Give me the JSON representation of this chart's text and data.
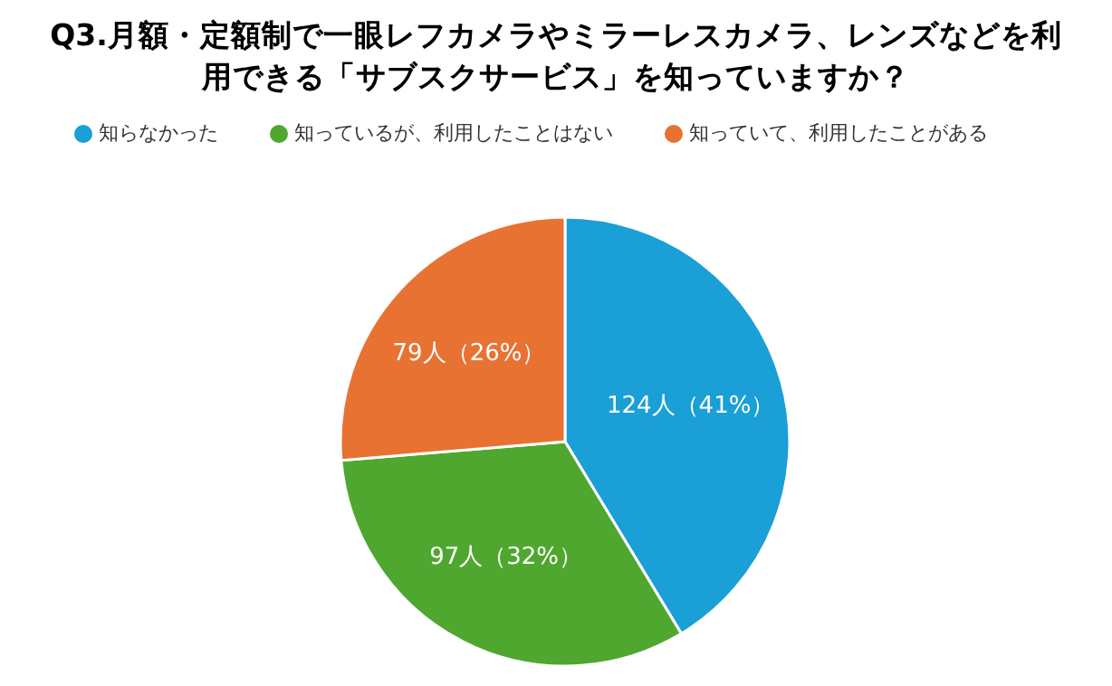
{
  "chart_data": {
    "type": "pie",
    "title": "Q3.月額・定額制で一眼レフカメラやミラーレスカメラ、レンズなどを利用できる「サブスクサービス」を知っていますか？",
    "categories": [
      "知らなかった",
      "知っているが、利用したことはない",
      "知っていて、利用したことがある"
    ],
    "values": [
      124,
      97,
      79
    ],
    "colors": [
      "#1a9fd6",
      "#4fa72f",
      "#e87232"
    ],
    "value_labels": [
      "124人（41%）",
      "97人（32%）",
      "79人（26%）"
    ],
    "legend": "top"
  }
}
